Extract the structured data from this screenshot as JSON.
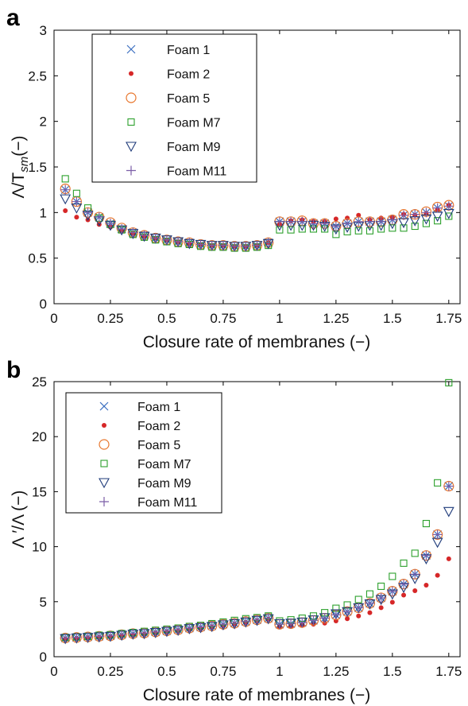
{
  "chart_data": [
    {
      "type": "scatter",
      "panel_label": "a",
      "xlabel": "Closure rate of membranes (−)",
      "ylabel_main": "Λ/T",
      "ylabel_sub": "sm",
      "ylabel_tail": "(−)",
      "xlim": [
        0,
        1.8
      ],
      "ylim": [
        0,
        3
      ],
      "xticks": [
        0,
        0.25,
        0.5,
        0.75,
        1,
        1.25,
        1.5,
        1.75
      ],
      "xtick_labels": [
        "0",
        "0.25",
        "0.5",
        "0.75",
        "1",
        "1.25",
        "1.5",
        "1.75"
      ],
      "yticks": [
        0,
        0.5,
        1,
        1.5,
        2,
        2.5,
        3
      ],
      "ytick_labels": [
        "0",
        "0.5",
        "1",
        "1.5",
        "2",
        "2.5",
        "3"
      ],
      "legend_position": "top-left",
      "x": [
        0.05,
        0.1,
        0.15,
        0.2,
        0.25,
        0.3,
        0.35,
        0.4,
        0.45,
        0.5,
        0.55,
        0.6,
        0.65,
        0.7,
        0.75,
        0.8,
        0.85,
        0.9,
        0.95,
        1.0,
        1.05,
        1.1,
        1.15,
        1.2,
        1.25,
        1.3,
        1.35,
        1.4,
        1.45,
        1.5,
        1.55,
        1.6,
        1.65,
        1.7,
        1.75
      ],
      "series": [
        {
          "name": "Foam 1",
          "marker": "x",
          "color": "#3b6fc0",
          "values": [
            1.25,
            1.12,
            1.0,
            0.95,
            0.88,
            0.82,
            0.78,
            0.75,
            0.72,
            0.7,
            0.68,
            0.67,
            0.65,
            0.64,
            0.64,
            0.63,
            0.63,
            0.64,
            0.67,
            0.9,
            0.9,
            0.9,
            0.88,
            0.88,
            0.85,
            0.88,
            0.9,
            0.9,
            0.9,
            0.92,
            0.97,
            0.98,
            1.0,
            1.05,
            1.07
          ]
        },
        {
          "name": "Foam 2",
          "marker": "dot",
          "color": "#d62728",
          "values": [
            1.02,
            0.95,
            0.92,
            0.87,
            0.84,
            0.8,
            0.77,
            0.74,
            0.72,
            0.7,
            0.68,
            0.66,
            0.65,
            0.64,
            0.64,
            0.63,
            0.63,
            0.64,
            0.67,
            0.87,
            0.91,
            0.92,
            0.9,
            0.9,
            0.93,
            0.94,
            0.97,
            0.92,
            0.94,
            0.95,
            0.98,
            0.97,
            0.99,
            1.03,
            1.08
          ]
        },
        {
          "name": "Foam 5",
          "marker": "circle",
          "color": "#e8772e",
          "values": [
            1.26,
            1.12,
            1.0,
            0.95,
            0.89,
            0.83,
            0.78,
            0.75,
            0.72,
            0.7,
            0.68,
            0.67,
            0.65,
            0.64,
            0.64,
            0.63,
            0.63,
            0.64,
            0.67,
            0.9,
            0.9,
            0.91,
            0.88,
            0.88,
            0.85,
            0.88,
            0.9,
            0.9,
            0.9,
            0.92,
            0.98,
            0.98,
            1.01,
            1.06,
            1.08
          ]
        },
        {
          "name": "Foam M7",
          "marker": "square",
          "color": "#2ca02c",
          "values": [
            1.37,
            1.21,
            1.05,
            0.94,
            0.87,
            0.81,
            0.76,
            0.73,
            0.7,
            0.68,
            0.66,
            0.65,
            0.63,
            0.62,
            0.62,
            0.61,
            0.61,
            0.62,
            0.64,
            0.81,
            0.81,
            0.82,
            0.82,
            0.82,
            0.76,
            0.79,
            0.8,
            0.8,
            0.82,
            0.83,
            0.83,
            0.85,
            0.88,
            0.91,
            0.96
          ]
        },
        {
          "name": "Foam M9",
          "marker": "triangle-down",
          "color": "#1f3b7a",
          "values": [
            1.15,
            1.05,
            0.97,
            0.91,
            0.86,
            0.81,
            0.77,
            0.74,
            0.72,
            0.7,
            0.68,
            0.66,
            0.65,
            0.64,
            0.64,
            0.63,
            0.63,
            0.64,
            0.66,
            0.86,
            0.86,
            0.86,
            0.86,
            0.85,
            0.82,
            0.84,
            0.85,
            0.86,
            0.86,
            0.88,
            0.89,
            0.91,
            0.93,
            0.96,
            0.99
          ]
        },
        {
          "name": "Foam M11",
          "marker": "plus",
          "color": "#7b5ea7",
          "values": [
            1.25,
            1.12,
            1.0,
            0.95,
            0.88,
            0.82,
            0.78,
            0.75,
            0.72,
            0.7,
            0.68,
            0.67,
            0.65,
            0.64,
            0.64,
            0.63,
            0.63,
            0.64,
            0.67,
            0.9,
            0.9,
            0.9,
            0.88,
            0.88,
            0.85,
            0.88,
            0.9,
            0.9,
            0.9,
            0.92,
            0.97,
            0.98,
            1.0,
            1.05,
            1.07
          ]
        }
      ]
    },
    {
      "type": "scatter",
      "panel_label": "b",
      "xlabel": "Closure rate of membranes (−)",
      "ylabel_main": "Λ ′/Λ",
      "ylabel_sub": "",
      "ylabel_tail": "(−)",
      "xlim": [
        0,
        1.8
      ],
      "ylim": [
        0,
        25
      ],
      "xticks": [
        0,
        0.25,
        0.5,
        0.75,
        1,
        1.25,
        1.5,
        1.75
      ],
      "xtick_labels": [
        "0",
        "0.25",
        "0.5",
        "0.75",
        "1",
        "1.25",
        "1.5",
        "1.75"
      ],
      "yticks": [
        0,
        5,
        10,
        15,
        20,
        25
      ],
      "ytick_labels": [
        "0",
        "5",
        "10",
        "15",
        "20",
        "25"
      ],
      "legend_position": "top-left",
      "x": [
        0.05,
        0.1,
        0.15,
        0.2,
        0.25,
        0.3,
        0.35,
        0.4,
        0.45,
        0.5,
        0.55,
        0.6,
        0.65,
        0.7,
        0.75,
        0.8,
        0.85,
        0.9,
        0.95,
        1.0,
        1.05,
        1.1,
        1.15,
        1.2,
        1.25,
        1.3,
        1.35,
        1.4,
        1.45,
        1.5,
        1.55,
        1.6,
        1.65,
        1.7,
        1.75
      ],
      "series": [
        {
          "name": "Foam 1",
          "marker": "x",
          "color": "#3b6fc0",
          "values": [
            1.7,
            1.75,
            1.8,
            1.85,
            1.9,
            2.0,
            2.1,
            2.15,
            2.25,
            2.35,
            2.45,
            2.6,
            2.7,
            2.8,
            2.95,
            3.05,
            3.2,
            3.35,
            3.5,
            2.95,
            3.0,
            3.1,
            3.3,
            3.5,
            3.8,
            4.1,
            4.45,
            4.85,
            5.35,
            5.95,
            6.6,
            7.5,
            9.2,
            11.1,
            15.5
          ]
        },
        {
          "name": "Foam 2",
          "marker": "dot",
          "color": "#d62728",
          "values": [
            1.6,
            1.65,
            1.7,
            1.75,
            1.8,
            1.9,
            1.95,
            2.05,
            2.15,
            2.25,
            2.35,
            2.45,
            2.55,
            2.7,
            2.8,
            2.95,
            3.1,
            3.25,
            3.4,
            2.7,
            2.75,
            2.85,
            2.95,
            3.05,
            3.25,
            3.45,
            3.7,
            4.0,
            4.45,
            4.95,
            5.6,
            6.0,
            6.5,
            7.4,
            8.9
          ]
        },
        {
          "name": "Foam 5",
          "marker": "circle",
          "color": "#e8772e",
          "values": [
            1.7,
            1.75,
            1.8,
            1.85,
            1.9,
            2.0,
            2.1,
            2.15,
            2.25,
            2.35,
            2.45,
            2.6,
            2.7,
            2.8,
            2.95,
            3.05,
            3.2,
            3.35,
            3.5,
            2.95,
            3.0,
            3.1,
            3.3,
            3.5,
            3.8,
            4.1,
            4.45,
            4.85,
            5.35,
            5.95,
            6.6,
            7.5,
            9.2,
            11.1,
            15.5
          ]
        },
        {
          "name": "Foam M7",
          "marker": "square",
          "color": "#2ca02c",
          "values": [
            1.75,
            1.8,
            1.85,
            1.95,
            2.0,
            2.1,
            2.2,
            2.3,
            2.4,
            2.5,
            2.6,
            2.75,
            2.85,
            3.0,
            3.15,
            3.3,
            3.45,
            3.55,
            3.7,
            3.25,
            3.35,
            3.5,
            3.7,
            4.0,
            4.4,
            4.7,
            5.2,
            5.7,
            6.4,
            7.3,
            8.5,
            9.4,
            12.1,
            15.8,
            24.9
          ]
        },
        {
          "name": "Foam M9",
          "marker": "triangle-down",
          "color": "#1f3b7a",
          "values": [
            1.65,
            1.7,
            1.75,
            1.8,
            1.85,
            1.95,
            2.05,
            2.1,
            2.2,
            2.3,
            2.4,
            2.55,
            2.65,
            2.75,
            2.9,
            3.0,
            3.15,
            3.3,
            3.45,
            3.0,
            3.05,
            3.15,
            3.35,
            3.55,
            3.9,
            4.1,
            4.45,
            4.8,
            5.2,
            5.7,
            6.3,
            7.1,
            8.9,
            10.4,
            13.2
          ]
        },
        {
          "name": "Foam M11",
          "marker": "plus",
          "color": "#7b5ea7",
          "values": [
            1.7,
            1.75,
            1.8,
            1.85,
            1.9,
            2.0,
            2.1,
            2.15,
            2.25,
            2.35,
            2.45,
            2.6,
            2.7,
            2.8,
            2.95,
            3.05,
            3.2,
            3.35,
            3.5,
            2.95,
            3.0,
            3.1,
            3.3,
            3.5,
            3.8,
            4.1,
            4.45,
            4.85,
            5.35,
            5.95,
            6.6,
            7.5,
            9.2,
            11.1,
            15.5
          ]
        }
      ]
    }
  ]
}
